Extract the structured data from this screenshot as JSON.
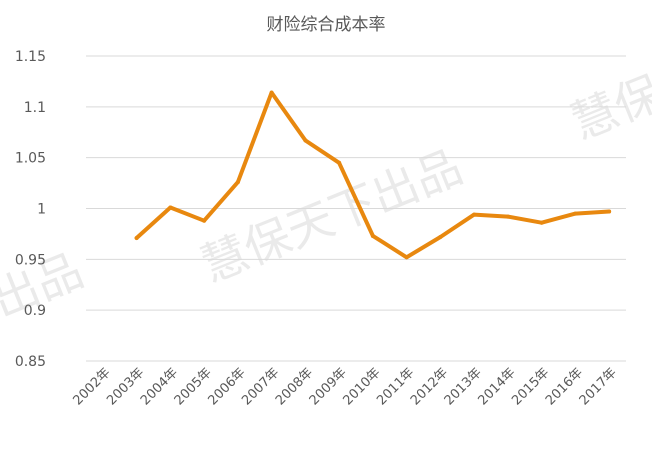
{
  "watermarks": [
    "慧保天下出品",
    "出品",
    "慧保"
  ],
  "chart_data": {
    "type": "line",
    "title": "财险综合成本率",
    "xlabel": "",
    "ylabel": "",
    "categories": [
      "2002年",
      "2003年",
      "2004年",
      "2005年",
      "2006年",
      "2007年",
      "2008年",
      "2009年",
      "2010年",
      "2011年",
      "2012年",
      "2013年",
      "2014年",
      "2015年",
      "2016年",
      "2017年"
    ],
    "y_ticks": [
      "0.85",
      "0.9",
      "0.95",
      "1",
      "1.05",
      "1.1",
      "1.15"
    ],
    "ylim": [
      0.85,
      1.15
    ],
    "grid": true,
    "legend": "none",
    "series": [
      {
        "color": "#e8880f",
        "values": [
          null,
          0.971,
          1.001,
          0.988,
          1.026,
          1.114,
          1.067,
          1.045,
          0.973,
          0.952,
          0.972,
          0.994,
          0.992,
          0.986,
          0.995,
          0.997
        ]
      }
    ]
  }
}
